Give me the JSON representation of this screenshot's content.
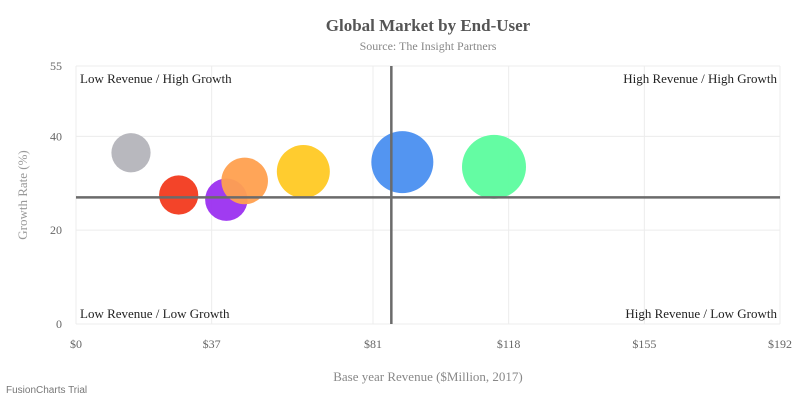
{
  "chart_data": {
    "type": "bubble",
    "title": "Global Market by End-User",
    "subtitle": "Source: The Insight Partners",
    "xlabel": "Base year Revenue ($Million, 2017)",
    "ylabel": "Growth Rate (%)",
    "xlim": [
      0,
      192
    ],
    "ylim": [
      0,
      55
    ],
    "x_ticks": [
      "$0",
      "$37",
      "$81",
      "$118",
      "$155",
      "$192"
    ],
    "y_ticks": [
      "0",
      "20",
      "40",
      "55"
    ],
    "x_tick_values": [
      0,
      37,
      81,
      118,
      155,
      192
    ],
    "y_tick_values": [
      0,
      20,
      40,
      55
    ],
    "grid": true,
    "quadrant_lines": {
      "x": 86,
      "y": 27
    },
    "quadrant_labels": {
      "top_left": "Low Revenue / High Growth",
      "top_right": "High Revenue / High Growth",
      "bottom_left": "Low Revenue / Low Growth",
      "bottom_right": "High Revenue / Low Growth"
    },
    "points": [
      {
        "x": 15,
        "y": 36.5,
        "size": 12,
        "color": "#b4b4bb"
      },
      {
        "x": 28,
        "y": 27.5,
        "size": 12,
        "color": "#f23a1e"
      },
      {
        "x": 41,
        "y": 26.5,
        "size": 14,
        "color": "#9b30f0"
      },
      {
        "x": 46,
        "y": 30.5,
        "size": 17,
        "color": "#ffa04f"
      },
      {
        "x": 62,
        "y": 32.5,
        "size": 22,
        "color": "#ffc924"
      },
      {
        "x": 89,
        "y": 34.5,
        "size": 30,
        "color": "#4a8ff0"
      },
      {
        "x": 114,
        "y": 33.5,
        "size": 32,
        "color": "#5cfc9e"
      }
    ]
  },
  "watermark": "FusionCharts Trial"
}
